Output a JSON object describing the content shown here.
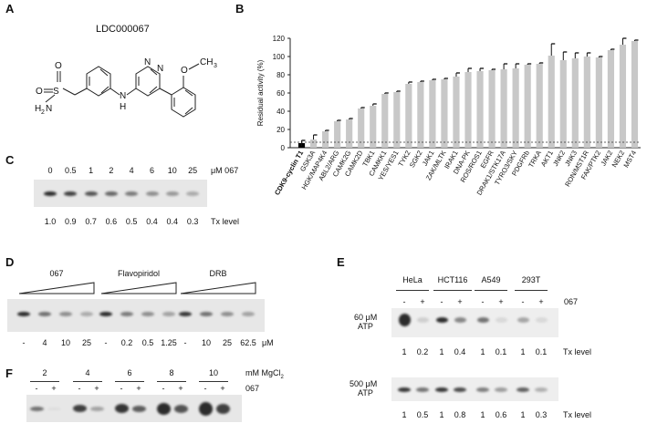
{
  "panelA": {
    "letter": "A",
    "compound_name": "LDC000067",
    "atoms": {
      "s": "S",
      "o1": "O",
      "o2": "O",
      "h2n": "H",
      "n2": "2",
      "nlink": "N",
      "nh": "H",
      "nring1": "N",
      "nring2": "N",
      "o_me": "O",
      "ch3": "CH",
      "ch3_sub": "3"
    }
  },
  "panelB": {
    "letter": "B",
    "chart_data": {
      "type": "bar",
      "ylabel": "Residual activity (%)",
      "ylim": [
        0,
        120
      ],
      "yticks": [
        "0",
        "20",
        "40",
        "60",
        "80",
        "100",
        "120"
      ],
      "threshold_line": 6,
      "highlight_color": "#000000",
      "bar_color": "#c8c8c8",
      "categories": [
        "CDK9-cyclin T1",
        "GSK3A",
        "HGK/MAP4K4",
        "ABL2/ARG",
        "CAMK2G",
        "CAMK2D",
        "TBK1",
        "CAMKK1",
        "YES/YES1",
        "TYK2",
        "SGK2",
        "JAK1",
        "ZAK/MLTK",
        "IRAK1",
        "DNA-PK",
        "ROS/ROS1",
        "EGFR",
        "DRAK1/STK17A",
        "TYRO3/SKY",
        "PDGFRb",
        "TRKA",
        "AKT1",
        "JNK2",
        "JNK3",
        "RON/MST1R",
        "FAK/PTK2",
        "JAK2",
        "NEK2",
        "MST4"
      ],
      "values": [
        5,
        9,
        18,
        29,
        31,
        43,
        46,
        59,
        61,
        70,
        72,
        74,
        75,
        78,
        83,
        84,
        85,
        86,
        87,
        91,
        92,
        101,
        96,
        98,
        100,
        99,
        107,
        113,
        117
      ],
      "errors": [
        3,
        5,
        1,
        1,
        1,
        1,
        2,
        1,
        1,
        2,
        1,
        1,
        1,
        4,
        4,
        3,
        1,
        6,
        5,
        1,
        1,
        13,
        9,
        6,
        4,
        1,
        1,
        7,
        1
      ]
    }
  },
  "panelC": {
    "letter": "C",
    "concentrations": [
      "0",
      "0.5",
      "1",
      "2",
      "4",
      "6",
      "10",
      "25"
    ],
    "unit": "μM 067",
    "tx_levels": [
      "1.0",
      "0.9",
      "0.7",
      "0.6",
      "0.5",
      "0.4",
      "0.4",
      "0.3"
    ],
    "tx_label": "Tx level"
  },
  "panelD": {
    "letter": "D",
    "groups": [
      "067",
      "Flavopiridol",
      "DRB"
    ],
    "doses": [
      "-",
      "4",
      "10",
      "25",
      "-",
      "0.2",
      "0.5",
      "1.25",
      "-",
      "10",
      "25",
      "62.5"
    ],
    "unit": "μM"
  },
  "panelE": {
    "letter": "E",
    "cell_lines": [
      "HeLa",
      "HCT116",
      "A549",
      "293T"
    ],
    "signs": [
      "-",
      "+",
      "-",
      "+",
      "-",
      "+",
      "-",
      "+"
    ],
    "drug": "067",
    "atp_low": "60 μM",
    "atp_high": "500 μM",
    "atp_word": "ATP",
    "tx_label": "Tx level",
    "tx_low": [
      "1",
      "0.2",
      "1",
      "0.4",
      "1",
      "0.1",
      "1",
      "0.1"
    ],
    "tx_high": [
      "1",
      "0.5",
      "1",
      "0.8",
      "1",
      "0.6",
      "1",
      "0.3"
    ]
  },
  "panelF": {
    "letter": "F",
    "mgcl2": [
      "2",
      "4",
      "6",
      "8",
      "10"
    ],
    "unit": "mM MgCl",
    "unit_sub": "2",
    "signs": [
      "-",
      "+",
      "-",
      "+",
      "-",
      "+",
      "-",
      "+",
      "-",
      "+"
    ],
    "drug": "067"
  }
}
